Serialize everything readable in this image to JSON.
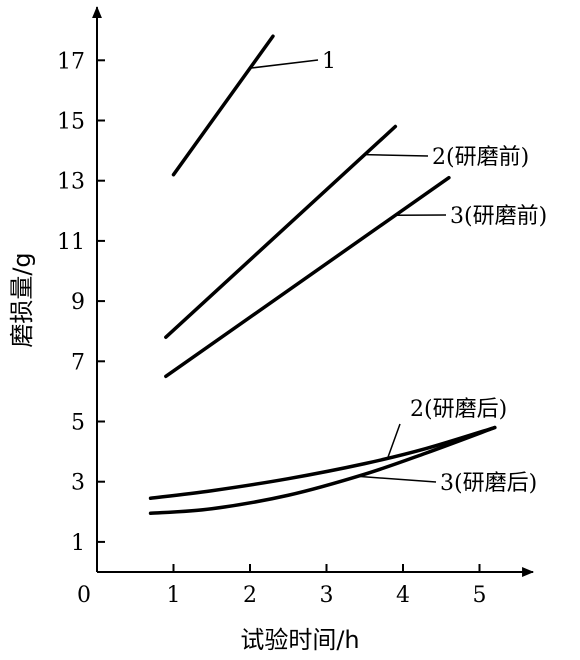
{
  "chart_data": {
    "type": "line",
    "xlabel": "试验时间/h",
    "ylabel": "磨损量/g",
    "xlim": [
      0,
      5.7
    ],
    "ylim": [
      0,
      18.5
    ],
    "xticks": [
      0,
      1,
      2,
      3,
      4,
      5
    ],
    "yticks": [
      1,
      3,
      5,
      7,
      9,
      11,
      13,
      15,
      17
    ],
    "origin_label": "0",
    "grid": false,
    "legend": "none",
    "series": [
      {
        "name": "1",
        "label": "1",
        "x": [
          1.0,
          2.3
        ],
        "y": [
          13.2,
          17.8
        ]
      },
      {
        "name": "2(研磨前)",
        "label": "2(研磨前)",
        "x": [
          0.9,
          3.9
        ],
        "y": [
          7.8,
          14.8
        ]
      },
      {
        "name": "3(研磨前)",
        "label": "3(研磨前)",
        "x": [
          0.9,
          4.6
        ],
        "y": [
          6.5,
          13.1
        ]
      },
      {
        "name": "2(研磨后)",
        "label": "2(研磨后)",
        "x": [
          0.7,
          1.5,
          2.5,
          3.5,
          4.3,
          5.2
        ],
        "y": [
          2.45,
          2.7,
          3.1,
          3.6,
          4.1,
          4.8
        ]
      },
      {
        "name": "3(研磨后)",
        "label": "3(研磨后)",
        "x": [
          0.7,
          1.5,
          2.5,
          3.5,
          4.3,
          5.2
        ],
        "y": [
          1.95,
          2.1,
          2.55,
          3.25,
          3.95,
          4.8
        ]
      }
    ]
  }
}
